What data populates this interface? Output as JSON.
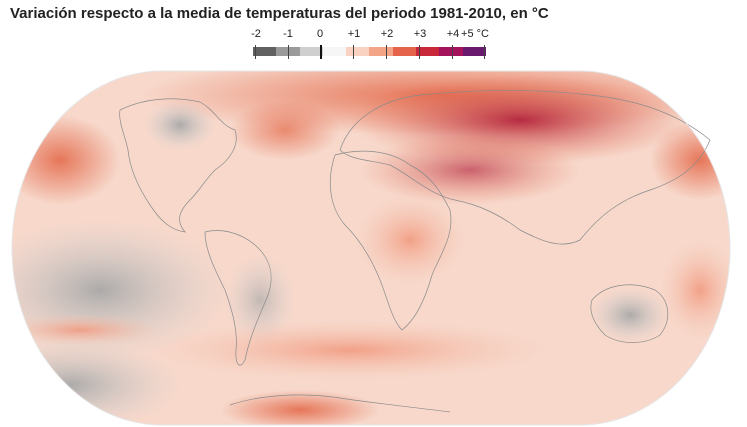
{
  "title": "Variación respecto a la media de temperaturas del periodo 1981-2010, en °C",
  "legend": {
    "labels": [
      "-2",
      "-1",
      "0",
      "+1",
      "+2",
      "+3",
      "+4",
      "+5 °C"
    ],
    "colors": [
      "#616161",
      "#9a9a9a",
      "#cfcfcf",
      "#f6f6f6",
      "#f9d2c1",
      "#f3a386",
      "#e5634a",
      "#c9283a",
      "#a3125b",
      "#6a1a6e"
    ]
  },
  "map": {
    "cold_color": "#bdbdbd",
    "warm_color": "#e46b4c",
    "hot_color": "#b3243d",
    "coast_color": "#8a8a8a"
  }
}
